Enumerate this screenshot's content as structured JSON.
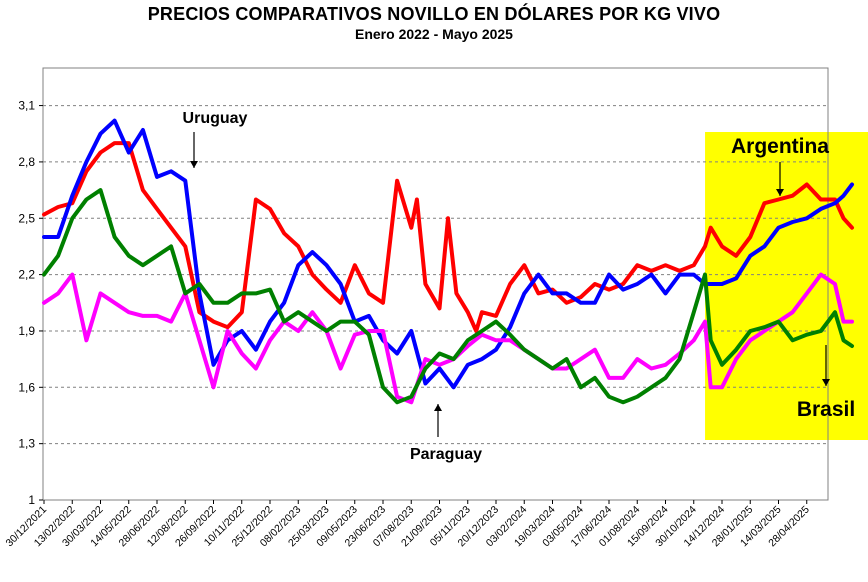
{
  "chart_data": {
    "type": "line",
    "title": "PRECIOS COMPARATIVOS NOVILLO EN DÓLARES POR KG  VIVO",
    "subtitle": "Enero  2022 -  Mayo 2025",
    "ylim": [
      1,
      3.3
    ],
    "yticks": [
      1,
      1.3,
      1.6,
      1.9,
      2.2,
      2.5,
      2.8,
      3.1
    ],
    "ytick_labels": [
      "1",
      "1,3",
      "1,6",
      "1,9",
      "2,2",
      "2,5",
      "2,8",
      "3,1"
    ],
    "grid": "horizontal-dashed",
    "x_labels": [
      "30/12/2021",
      "13/02/2022",
      "30/03/2022",
      "14/05/2022",
      "28/06/2022",
      "12/08/2022",
      "26/09/2022",
      "10/11/2022",
      "25/12/2022",
      "08/02/2023",
      "25/03/2023",
      "09/05/2023",
      "23/06/2023",
      "07/08/2023",
      "21/09/2023",
      "05/11/2023",
      "20/12/2023",
      "03/02/2024",
      "19/03/2024",
      "03/05/2024",
      "17/06/2024",
      "01/08/2024",
      "15/09/2024",
      "30/10/2024",
      "14/12/2024",
      "28/01/2025",
      "14/03/2025",
      "28/04/2025"
    ],
    "highlight": {
      "from_label_index": 23.4,
      "to_label_index": 29,
      "color": "#ffff00"
    },
    "series": [
      {
        "name": "Argentina",
        "color": "#ff0000",
        "x": [
          0,
          0.5,
          1,
          1.5,
          2,
          2.5,
          3,
          3.5,
          4,
          4.5,
          5,
          5.5,
          6,
          6.5,
          7,
          7.5,
          8,
          8.5,
          9,
          9.5,
          10,
          10.5,
          11,
          11.5,
          12,
          12.5,
          13,
          13.2,
          13.5,
          14,
          14.3,
          14.6,
          15,
          15.3,
          15.5,
          16,
          16.5,
          17,
          17.5,
          18,
          18.5,
          19,
          19.5,
          20,
          20.5,
          21,
          21.5,
          22,
          22.5,
          23,
          23.4,
          23.6,
          24,
          24.5,
          25,
          25.5,
          26,
          26.5,
          27,
          27.5,
          28,
          28.3,
          28.6
        ],
        "y": [
          2.52,
          2.56,
          2.58,
          2.75,
          2.85,
          2.9,
          2.9,
          2.65,
          2.55,
          2.45,
          2.35,
          2.0,
          1.95,
          1.92,
          2.0,
          2.6,
          2.55,
          2.42,
          2.35,
          2.2,
          2.12,
          2.05,
          2.25,
          2.1,
          2.05,
          2.7,
          2.45,
          2.6,
          2.15,
          2.02,
          2.5,
          2.1,
          2.0,
          1.9,
          2.0,
          1.98,
          2.15,
          2.25,
          2.1,
          2.12,
          2.05,
          2.08,
          2.15,
          2.12,
          2.15,
          2.25,
          2.22,
          2.25,
          2.22,
          2.25,
          2.35,
          2.45,
          2.35,
          2.3,
          2.4,
          2.58,
          2.6,
          2.62,
          2.68,
          2.6,
          2.6,
          2.5,
          2.45
        ]
      },
      {
        "name": "Uruguay",
        "color": "#0000ff",
        "x": [
          0,
          0.5,
          1,
          1.5,
          2,
          2.5,
          3,
          3.5,
          4,
          4.5,
          5,
          5.5,
          6,
          6.5,
          7,
          7.5,
          8,
          8.5,
          9,
          9.5,
          10,
          10.5,
          11,
          11.5,
          12,
          12.5,
          13,
          13.5,
          14,
          14.5,
          15,
          15.5,
          16,
          16.5,
          17,
          17.5,
          18,
          18.5,
          19,
          19.5,
          20,
          20.5,
          21,
          21.5,
          22,
          22.5,
          23,
          23.4,
          23.6,
          24,
          24.5,
          25,
          25.5,
          26,
          26.5,
          27,
          27.5,
          28,
          28.3,
          28.6
        ],
        "y": [
          2.4,
          2.4,
          2.62,
          2.8,
          2.95,
          3.02,
          2.85,
          2.97,
          2.72,
          2.75,
          2.7,
          2.1,
          1.72,
          1.85,
          1.9,
          1.8,
          1.95,
          2.05,
          2.25,
          2.32,
          2.25,
          2.15,
          1.95,
          1.98,
          1.85,
          1.78,
          1.9,
          1.62,
          1.7,
          1.6,
          1.72,
          1.75,
          1.8,
          1.92,
          2.1,
          2.2,
          2.1,
          2.1,
          2.05,
          2.05,
          2.2,
          2.12,
          2.15,
          2.2,
          2.1,
          2.2,
          2.2,
          2.15,
          2.15,
          2.15,
          2.18,
          2.3,
          2.35,
          2.45,
          2.48,
          2.5,
          2.55,
          2.58,
          2.62,
          2.68
        ]
      },
      {
        "name": "Paraguay",
        "color": "#ff00ff",
        "x": [
          0,
          0.5,
          1,
          1.5,
          2,
          2.5,
          3,
          3.5,
          4,
          4.5,
          5,
          5.5,
          6,
          6.5,
          7,
          7.5,
          8,
          8.5,
          9,
          9.5,
          10,
          10.5,
          11,
          11.5,
          12,
          12.5,
          13,
          13.5,
          14,
          14.5,
          15,
          15.5,
          16,
          16.5,
          17,
          17.5,
          18,
          18.5,
          19,
          19.5,
          20,
          20.5,
          21,
          21.5,
          22,
          22.5,
          23,
          23.4,
          23.6,
          24,
          24.5,
          25,
          25.5,
          26,
          26.5,
          27,
          27.5,
          28,
          28.3,
          28.6
        ],
        "y": [
          2.05,
          2.1,
          2.2,
          1.85,
          2.1,
          2.05,
          2.0,
          1.98,
          1.98,
          1.95,
          2.1,
          1.85,
          1.6,
          1.9,
          1.78,
          1.7,
          1.85,
          1.95,
          1.9,
          2.0,
          1.9,
          1.7,
          1.88,
          1.9,
          1.9,
          1.55,
          1.52,
          1.75,
          1.72,
          1.75,
          1.82,
          1.88,
          1.85,
          1.85,
          1.8,
          1.75,
          1.7,
          1.7,
          1.75,
          1.8,
          1.65,
          1.65,
          1.75,
          1.7,
          1.72,
          1.78,
          1.85,
          1.95,
          1.6,
          1.6,
          1.75,
          1.85,
          1.9,
          1.95,
          2.0,
          2.1,
          2.2,
          2.15,
          1.95,
          1.95
        ]
      },
      {
        "name": "Brasil",
        "color": "#008000",
        "x": [
          0,
          0.5,
          1,
          1.5,
          2,
          2.5,
          3,
          3.5,
          4,
          4.5,
          5,
          5.5,
          6,
          6.5,
          7,
          7.5,
          8,
          8.5,
          9,
          9.5,
          10,
          10.5,
          11,
          11.5,
          12,
          12.5,
          13,
          13.5,
          14,
          14.5,
          15,
          15.5,
          16,
          16.5,
          17,
          17.5,
          18,
          18.5,
          19,
          19.5,
          20,
          20.5,
          21,
          21.5,
          22,
          22.5,
          23,
          23.4,
          23.6,
          24,
          24.5,
          25,
          25.5,
          26,
          26.5,
          27,
          27.5,
          28,
          28.3,
          28.6
        ],
        "y": [
          2.2,
          2.3,
          2.5,
          2.6,
          2.65,
          2.4,
          2.3,
          2.25,
          2.3,
          2.35,
          2.1,
          2.15,
          2.05,
          2.05,
          2.1,
          2.1,
          2.12,
          1.95,
          2.0,
          1.95,
          1.9,
          1.95,
          1.95,
          1.88,
          1.6,
          1.52,
          1.55,
          1.7,
          1.78,
          1.75,
          1.85,
          1.9,
          1.95,
          1.88,
          1.8,
          1.75,
          1.7,
          1.75,
          1.6,
          1.65,
          1.55,
          1.52,
          1.55,
          1.6,
          1.65,
          1.75,
          2.0,
          2.2,
          1.85,
          1.72,
          1.8,
          1.9,
          1.92,
          1.95,
          1.85,
          1.88,
          1.9,
          2.0,
          1.85,
          1.82
        ]
      }
    ],
    "annotations": [
      {
        "text": "Uruguay",
        "series": "Uruguay",
        "x": 4.9,
        "y": 2.72
      },
      {
        "text": "Argentina",
        "series": "Argentina",
        "x": 25.9,
        "y": 2.63
      },
      {
        "text": "Paraguay",
        "series": "Paraguay",
        "x": 13.0,
        "y": 1.48
      },
      {
        "text": "Brasil",
        "series": "Brasil",
        "x": 27.6,
        "y": 1.62
      }
    ]
  }
}
